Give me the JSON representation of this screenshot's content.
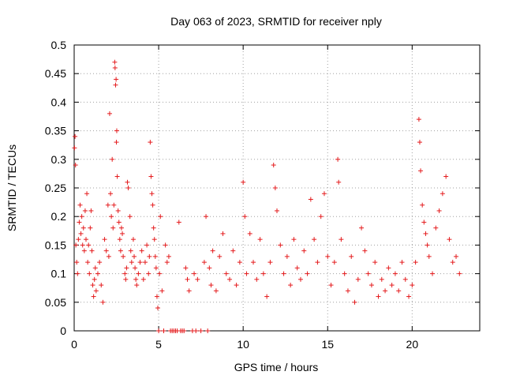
{
  "chart_data": {
    "type": "scatter",
    "title": "Day 063 of 2023, SRMTID for receiver nply",
    "xlabel": "GPS time / hours",
    "ylabel": "SRMTID / TECUs",
    "xlim": [
      0,
      24
    ],
    "ylim": [
      0,
      0.5
    ],
    "xticks": [
      0,
      5,
      10,
      15,
      20
    ],
    "xtick_labels": [
      "0",
      "5",
      "10",
      "15",
      "20"
    ],
    "yticks": [
      0,
      0.05,
      0.1,
      0.15,
      0.2,
      0.25,
      0.3,
      0.35,
      0.4,
      0.45,
      0.5
    ],
    "ytick_labels": [
      "0",
      "0.05",
      "0.1",
      "0.15",
      "0.2",
      "0.25",
      "0.3",
      "0.35",
      "0.4",
      "0.45",
      "0.5"
    ],
    "grid": true,
    "marker": "+",
    "series_color": "#e41a1c",
    "series": [
      {
        "name": "SRMTID",
        "points": [
          [
            0.02,
            0.32
          ],
          [
            0.05,
            0.34
          ],
          [
            0.08,
            0.29
          ],
          [
            0.1,
            0.15
          ],
          [
            0.15,
            0.12
          ],
          [
            0.2,
            0.1
          ],
          [
            0.25,
            0.16
          ],
          [
            0.3,
            0.19
          ],
          [
            0.35,
            0.22
          ],
          [
            0.4,
            0.17
          ],
          [
            0.45,
            0.2
          ],
          [
            0.5,
            0.15
          ],
          [
            0.55,
            0.18
          ],
          [
            0.6,
            0.14
          ],
          [
            0.65,
            0.21
          ],
          [
            0.7,
            0.16
          ],
          [
            0.75,
            0.24
          ],
          [
            0.8,
            0.12
          ],
          [
            0.85,
            0.15
          ],
          [
            0.9,
            0.1
          ],
          [
            0.95,
            0.18
          ],
          [
            1.0,
            0.21
          ],
          [
            1.05,
            0.14
          ],
          [
            1.1,
            0.08
          ],
          [
            1.15,
            0.06
          ],
          [
            1.2,
            0.09
          ],
          [
            1.25,
            0.11
          ],
          [
            1.3,
            0.07
          ],
          [
            1.4,
            0.1
          ],
          [
            1.5,
            0.12
          ],
          [
            1.6,
            0.08
          ],
          [
            1.7,
            0.05
          ],
          [
            1.8,
            0.16
          ],
          [
            1.9,
            0.14
          ],
          [
            2.0,
            0.22
          ],
          [
            2.05,
            0.13
          ],
          [
            2.1,
            0.38
          ],
          [
            2.15,
            0.24
          ],
          [
            2.2,
            0.2
          ],
          [
            2.25,
            0.3
          ],
          [
            2.3,
            0.18
          ],
          [
            2.35,
            0.22
          ],
          [
            2.4,
            0.47
          ],
          [
            2.42,
            0.46
          ],
          [
            2.45,
            0.43
          ],
          [
            2.48,
            0.44
          ],
          [
            2.5,
            0.33
          ],
          [
            2.52,
            0.35
          ],
          [
            2.55,
            0.27
          ],
          [
            2.6,
            0.21
          ],
          [
            2.65,
            0.19
          ],
          [
            2.7,
            0.16
          ],
          [
            2.75,
            0.14
          ],
          [
            2.8,
            0.18
          ],
          [
            2.85,
            0.17
          ],
          [
            2.9,
            0.13
          ],
          [
            3.0,
            0.1
          ],
          [
            3.05,
            0.09
          ],
          [
            3.1,
            0.11
          ],
          [
            3.15,
            0.26
          ],
          [
            3.2,
            0.25
          ],
          [
            3.3,
            0.2
          ],
          [
            3.35,
            0.14
          ],
          [
            3.4,
            0.12
          ],
          [
            3.5,
            0.16
          ],
          [
            3.55,
            0.13
          ],
          [
            3.6,
            0.11
          ],
          [
            3.65,
            0.09
          ],
          [
            3.7,
            0.08
          ],
          [
            3.8,
            0.1
          ],
          [
            3.9,
            0.12
          ],
          [
            4.0,
            0.14
          ],
          [
            4.1,
            0.09
          ],
          [
            4.2,
            0.12
          ],
          [
            4.3,
            0.15
          ],
          [
            4.4,
            0.1
          ],
          [
            4.45,
            0.13
          ],
          [
            4.5,
            0.33
          ],
          [
            4.55,
            0.27
          ],
          [
            4.6,
            0.24
          ],
          [
            4.65,
            0.22
          ],
          [
            4.7,
            0.18
          ],
          [
            4.75,
            0.16
          ],
          [
            4.8,
            0.13
          ],
          [
            4.85,
            0.11
          ],
          [
            4.9,
            0.06
          ],
          [
            4.95,
            0.04
          ],
          [
            5.0,
            0.0
          ],
          [
            5.05,
            0.1
          ],
          [
            5.1,
            0.2
          ],
          [
            5.2,
            0.07
          ],
          [
            5.3,
            0.0
          ],
          [
            5.4,
            0.15
          ],
          [
            5.5,
            0.12
          ],
          [
            5.6,
            0.13
          ],
          [
            5.7,
            0.0
          ],
          [
            5.8,
            0.0
          ],
          [
            5.9,
            0.0
          ],
          [
            6.0,
            0.0
          ],
          [
            6.1,
            0.0
          ],
          [
            6.2,
            0.19
          ],
          [
            6.3,
            0.0
          ],
          [
            6.4,
            0.0
          ],
          [
            6.5,
            0.0
          ],
          [
            6.6,
            0.11
          ],
          [
            6.7,
            0.09
          ],
          [
            6.8,
            0.07
          ],
          [
            7.0,
            0.0
          ],
          [
            7.1,
            0.1
          ],
          [
            7.2,
            0.0
          ],
          [
            7.3,
            0.09
          ],
          [
            7.5,
            0.0
          ],
          [
            7.7,
            0.12
          ],
          [
            7.8,
            0.2
          ],
          [
            7.9,
            0.0
          ],
          [
            8.0,
            0.11
          ],
          [
            8.1,
            0.08
          ],
          [
            8.2,
            0.14
          ],
          [
            8.4,
            0.07
          ],
          [
            8.6,
            0.13
          ],
          [
            8.8,
            0.17
          ],
          [
            9.0,
            0.1
          ],
          [
            9.2,
            0.09
          ],
          [
            9.4,
            0.14
          ],
          [
            9.6,
            0.08
          ],
          [
            9.8,
            0.12
          ],
          [
            10.0,
            0.26
          ],
          [
            10.1,
            0.2
          ],
          [
            10.2,
            0.1
          ],
          [
            10.4,
            0.17
          ],
          [
            10.6,
            0.12
          ],
          [
            10.8,
            0.09
          ],
          [
            11.0,
            0.16
          ],
          [
            11.2,
            0.1
          ],
          [
            11.4,
            0.06
          ],
          [
            11.6,
            0.12
          ],
          [
            11.8,
            0.29
          ],
          [
            11.9,
            0.25
          ],
          [
            12.0,
            0.21
          ],
          [
            12.2,
            0.15
          ],
          [
            12.4,
            0.1
          ],
          [
            12.6,
            0.13
          ],
          [
            12.8,
            0.08
          ],
          [
            13.0,
            0.16
          ],
          [
            13.2,
            0.11
          ],
          [
            13.4,
            0.09
          ],
          [
            13.6,
            0.14
          ],
          [
            13.8,
            0.1
          ],
          [
            14.0,
            0.23
          ],
          [
            14.2,
            0.16
          ],
          [
            14.4,
            0.12
          ],
          [
            14.6,
            0.2
          ],
          [
            14.8,
            0.24
          ],
          [
            15.0,
            0.13
          ],
          [
            15.2,
            0.08
          ],
          [
            15.4,
            0.12
          ],
          [
            15.6,
            0.3
          ],
          [
            15.65,
            0.26
          ],
          [
            15.8,
            0.16
          ],
          [
            16.0,
            0.1
          ],
          [
            16.2,
            0.07
          ],
          [
            16.4,
            0.13
          ],
          [
            16.6,
            0.05
          ],
          [
            16.8,
            0.09
          ],
          [
            17.0,
            0.18
          ],
          [
            17.2,
            0.14
          ],
          [
            17.4,
            0.1
          ],
          [
            17.6,
            0.08
          ],
          [
            17.8,
            0.12
          ],
          [
            18.0,
            0.06
          ],
          [
            18.2,
            0.09
          ],
          [
            18.4,
            0.07
          ],
          [
            18.6,
            0.11
          ],
          [
            18.8,
            0.08
          ],
          [
            19.0,
            0.1
          ],
          [
            19.2,
            0.07
          ],
          [
            19.4,
            0.12
          ],
          [
            19.6,
            0.09
          ],
          [
            19.8,
            0.06
          ],
          [
            20.0,
            0.08
          ],
          [
            20.2,
            0.12
          ],
          [
            20.4,
            0.37
          ],
          [
            20.45,
            0.33
          ],
          [
            20.5,
            0.28
          ],
          [
            20.6,
            0.22
          ],
          [
            20.7,
            0.19
          ],
          [
            20.8,
            0.17
          ],
          [
            20.9,
            0.15
          ],
          [
            21.0,
            0.13
          ],
          [
            21.2,
            0.1
          ],
          [
            21.4,
            0.18
          ],
          [
            21.6,
            0.21
          ],
          [
            21.8,
            0.24
          ],
          [
            22.0,
            0.27
          ],
          [
            22.2,
            0.16
          ],
          [
            22.4,
            0.12
          ],
          [
            22.6,
            0.13
          ],
          [
            22.8,
            0.1
          ]
        ]
      }
    ]
  }
}
